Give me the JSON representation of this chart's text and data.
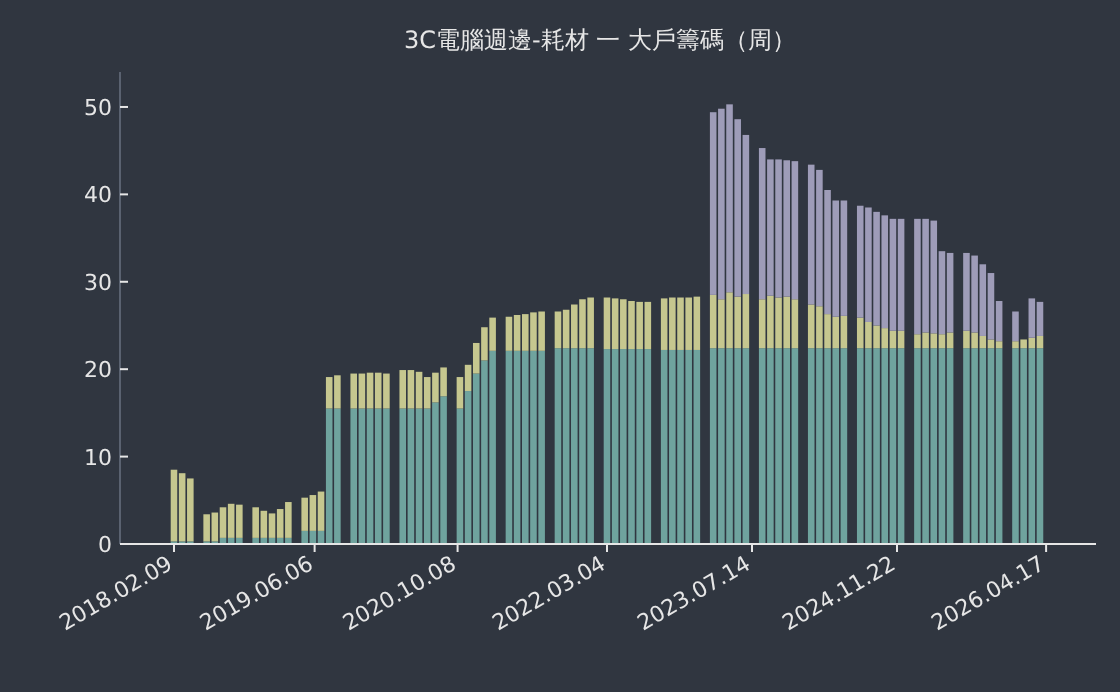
{
  "chart_data": {
    "type": "bar",
    "stacked": true,
    "title": "3C電腦週邊-耗材 一 大戶籌碼（周）",
    "x": [
      "2018-02-09",
      "2018-03-09",
      "2018-04-06",
      "2018-05-04",
      "2018-06-01",
      "2018-06-29",
      "2018-07-27",
      "2018-08-24",
      "2018-09-21",
      "2018-10-19",
      "2018-11-16",
      "2018-12-14",
      "2019-01-11",
      "2019-02-08",
      "2019-03-08",
      "2019-04-05",
      "2019-05-03",
      "2019-05-31",
      "2019-06-28",
      "2019-07-26",
      "2019-08-23",
      "2019-09-20",
      "2019-10-18",
      "2019-11-15",
      "2019-12-13",
      "2020-01-10",
      "2020-02-07",
      "2020-03-06",
      "2020-04-03",
      "2020-05-01",
      "2020-05-29",
      "2020-06-26",
      "2020-07-24",
      "2020-08-21",
      "2020-09-18",
      "2020-10-16",
      "2020-11-13",
      "2020-12-11",
      "2021-01-08",
      "2021-02-05",
      "2021-03-05",
      "2021-04-02",
      "2021-04-30",
      "2021-05-28",
      "2021-06-25",
      "2021-07-23",
      "2021-08-20",
      "2021-09-17",
      "2021-10-15",
      "2021-11-12",
      "2021-12-10",
      "2022-01-07",
      "2022-02-04",
      "2022-03-04",
      "2022-04-01",
      "2022-04-29",
      "2022-05-27",
      "2022-06-24",
      "2022-07-22",
      "2022-08-19",
      "2022-09-16",
      "2022-10-14",
      "2022-11-11",
      "2022-12-09",
      "2023-01-06",
      "2023-02-03",
      "2023-03-03",
      "2023-03-31",
      "2023-04-28",
      "2023-05-26",
      "2023-06-23",
      "2023-07-21",
      "2023-08-18",
      "2023-09-15",
      "2023-10-13",
      "2023-11-10",
      "2023-12-08",
      "2024-01-05",
      "2024-02-02",
      "2024-03-01",
      "2024-03-29",
      "2024-04-26",
      "2024-05-24",
      "2024-06-21",
      "2024-07-19",
      "2024-08-16",
      "2024-09-13",
      "2024-10-11",
      "2024-11-08",
      "2024-12-06",
      "2025-01-03",
      "2025-01-31",
      "2025-02-28",
      "2025-03-28",
      "2025-04-25",
      "2025-05-23",
      "2025-06-20",
      "2025-07-18",
      "2025-08-15",
      "2025-09-12",
      "2025-10-10",
      "2025-11-07",
      "2025-12-05",
      "2026-01-02",
      "2026-01-30",
      "2026-02-27",
      "2026-03-27"
    ],
    "series": [
      {
        "color": "#6fa39e",
        "values": [
          0.3,
          0.3,
          0.3,
          null,
          0.3,
          0.3,
          0.7,
          0.7,
          0.7,
          null,
          0.7,
          0.7,
          0.7,
          0.7,
          0.7,
          null,
          1.5,
          1.5,
          1.5,
          15.5,
          15.5,
          null,
          15.5,
          15.5,
          15.5,
          15.5,
          15.5,
          null,
          15.5,
          15.5,
          15.5,
          15.5,
          16.2,
          16.9,
          null,
          15.5,
          17.5,
          19.5,
          21.0,
          22.1,
          null,
          22.1,
          22.1,
          22.1,
          22.1,
          22.1,
          null,
          22.4,
          22.4,
          22.4,
          22.4,
          22.4,
          null,
          22.3,
          22.3,
          22.3,
          22.3,
          22.3,
          22.3,
          null,
          22.2,
          22.2,
          22.2,
          22.2,
          22.2,
          null,
          22.4,
          22.4,
          22.4,
          22.4,
          22.4,
          null,
          22.4,
          22.4,
          22.4,
          22.4,
          22.4,
          null,
          22.4,
          22.4,
          22.4,
          22.4,
          22.4,
          null,
          22.4,
          22.4,
          22.4,
          22.4,
          22.4,
          22.4,
          null,
          22.4,
          22.4,
          22.4,
          22.4,
          22.4,
          null,
          22.4,
          22.4,
          22.4,
          22.4,
          22.4,
          null,
          22.4,
          22.4,
          22.4,
          22.4
        ]
      },
      {
        "color": "#c6c78f",
        "values": [
          8.2,
          7.8,
          7.2,
          null,
          3.1,
          3.3,
          3.5,
          3.9,
          3.8,
          null,
          3.5,
          3.1,
          2.8,
          3.3,
          4.1,
          null,
          3.8,
          4.1,
          4.5,
          3.6,
          3.8,
          null,
          4.0,
          4.0,
          4.1,
          4.1,
          4.0,
          null,
          4.4,
          4.4,
          4.2,
          3.6,
          3.4,
          3.3,
          null,
          3.6,
          3.0,
          3.5,
          3.8,
          3.8,
          null,
          3.9,
          4.1,
          4.2,
          4.4,
          4.5,
          null,
          4.2,
          4.4,
          5.0,
          5.6,
          5.8,
          null,
          5.9,
          5.8,
          5.7,
          5.5,
          5.4,
          5.4,
          null,
          5.9,
          6.0,
          6.0,
          6.0,
          6.1,
          null,
          6.1,
          5.6,
          6.4,
          5.9,
          6.2,
          null,
          5.6,
          6.0,
          5.8,
          5.9,
          5.6,
          null,
          5.0,
          4.8,
          3.9,
          3.6,
          3.7,
          null,
          3.5,
          3.0,
          2.6,
          2.3,
          2.0,
          2.0,
          null,
          1.6,
          1.8,
          1.7,
          1.6,
          1.8,
          null,
          2.0,
          1.8,
          1.4,
          1.0,
          0.8,
          null,
          0.8,
          1.0,
          1.2,
          1.4
        ]
      },
      {
        "color": "#9e9cb8",
        "values": [
          null,
          null,
          null,
          null,
          null,
          null,
          null,
          null,
          null,
          null,
          null,
          null,
          null,
          null,
          null,
          null,
          null,
          null,
          null,
          null,
          null,
          null,
          null,
          null,
          null,
          null,
          null,
          null,
          null,
          null,
          null,
          null,
          null,
          null,
          null,
          null,
          null,
          null,
          null,
          null,
          null,
          null,
          null,
          null,
          null,
          null,
          null,
          null,
          null,
          null,
          null,
          null,
          null,
          null,
          null,
          null,
          null,
          null,
          null,
          null,
          null,
          null,
          null,
          null,
          null,
          null,
          20.9,
          21.8,
          21.5,
          20.3,
          18.2,
          null,
          17.3,
          15.6,
          15.8,
          15.6,
          15.8,
          null,
          16.0,
          15.6,
          14.2,
          13.3,
          13.2,
          null,
          12.8,
          13.1,
          13.0,
          12.9,
          12.8,
          12.8,
          null,
          13.2,
          13.0,
          12.9,
          9.5,
          9.1,
          null,
          8.9,
          8.8,
          8.2,
          7.6,
          4.6,
          null,
          3.4,
          null,
          4.5,
          3.9
        ]
      }
    ],
    "xlim": [
      "2017-08-08",
      "2026-10-05"
    ],
    "ylim": [
      0,
      54
    ],
    "xticks": [
      {
        "value": "2018-02-09",
        "label": "2018.02.09"
      },
      {
        "value": "2019-06-06",
        "label": "2019.06.06"
      },
      {
        "value": "2020-10-08",
        "label": "2020.10.08"
      },
      {
        "value": "2022-03-04",
        "label": "2022.03.04"
      },
      {
        "value": "2023-07-14",
        "label": "2023.07.14"
      },
      {
        "value": "2024-11-22",
        "label": "2024.11.22"
      },
      {
        "value": "2026-04-17",
        "label": "2026.04.17"
      }
    ],
    "yticks": [
      0,
      10,
      20,
      30,
      40,
      50
    ]
  }
}
